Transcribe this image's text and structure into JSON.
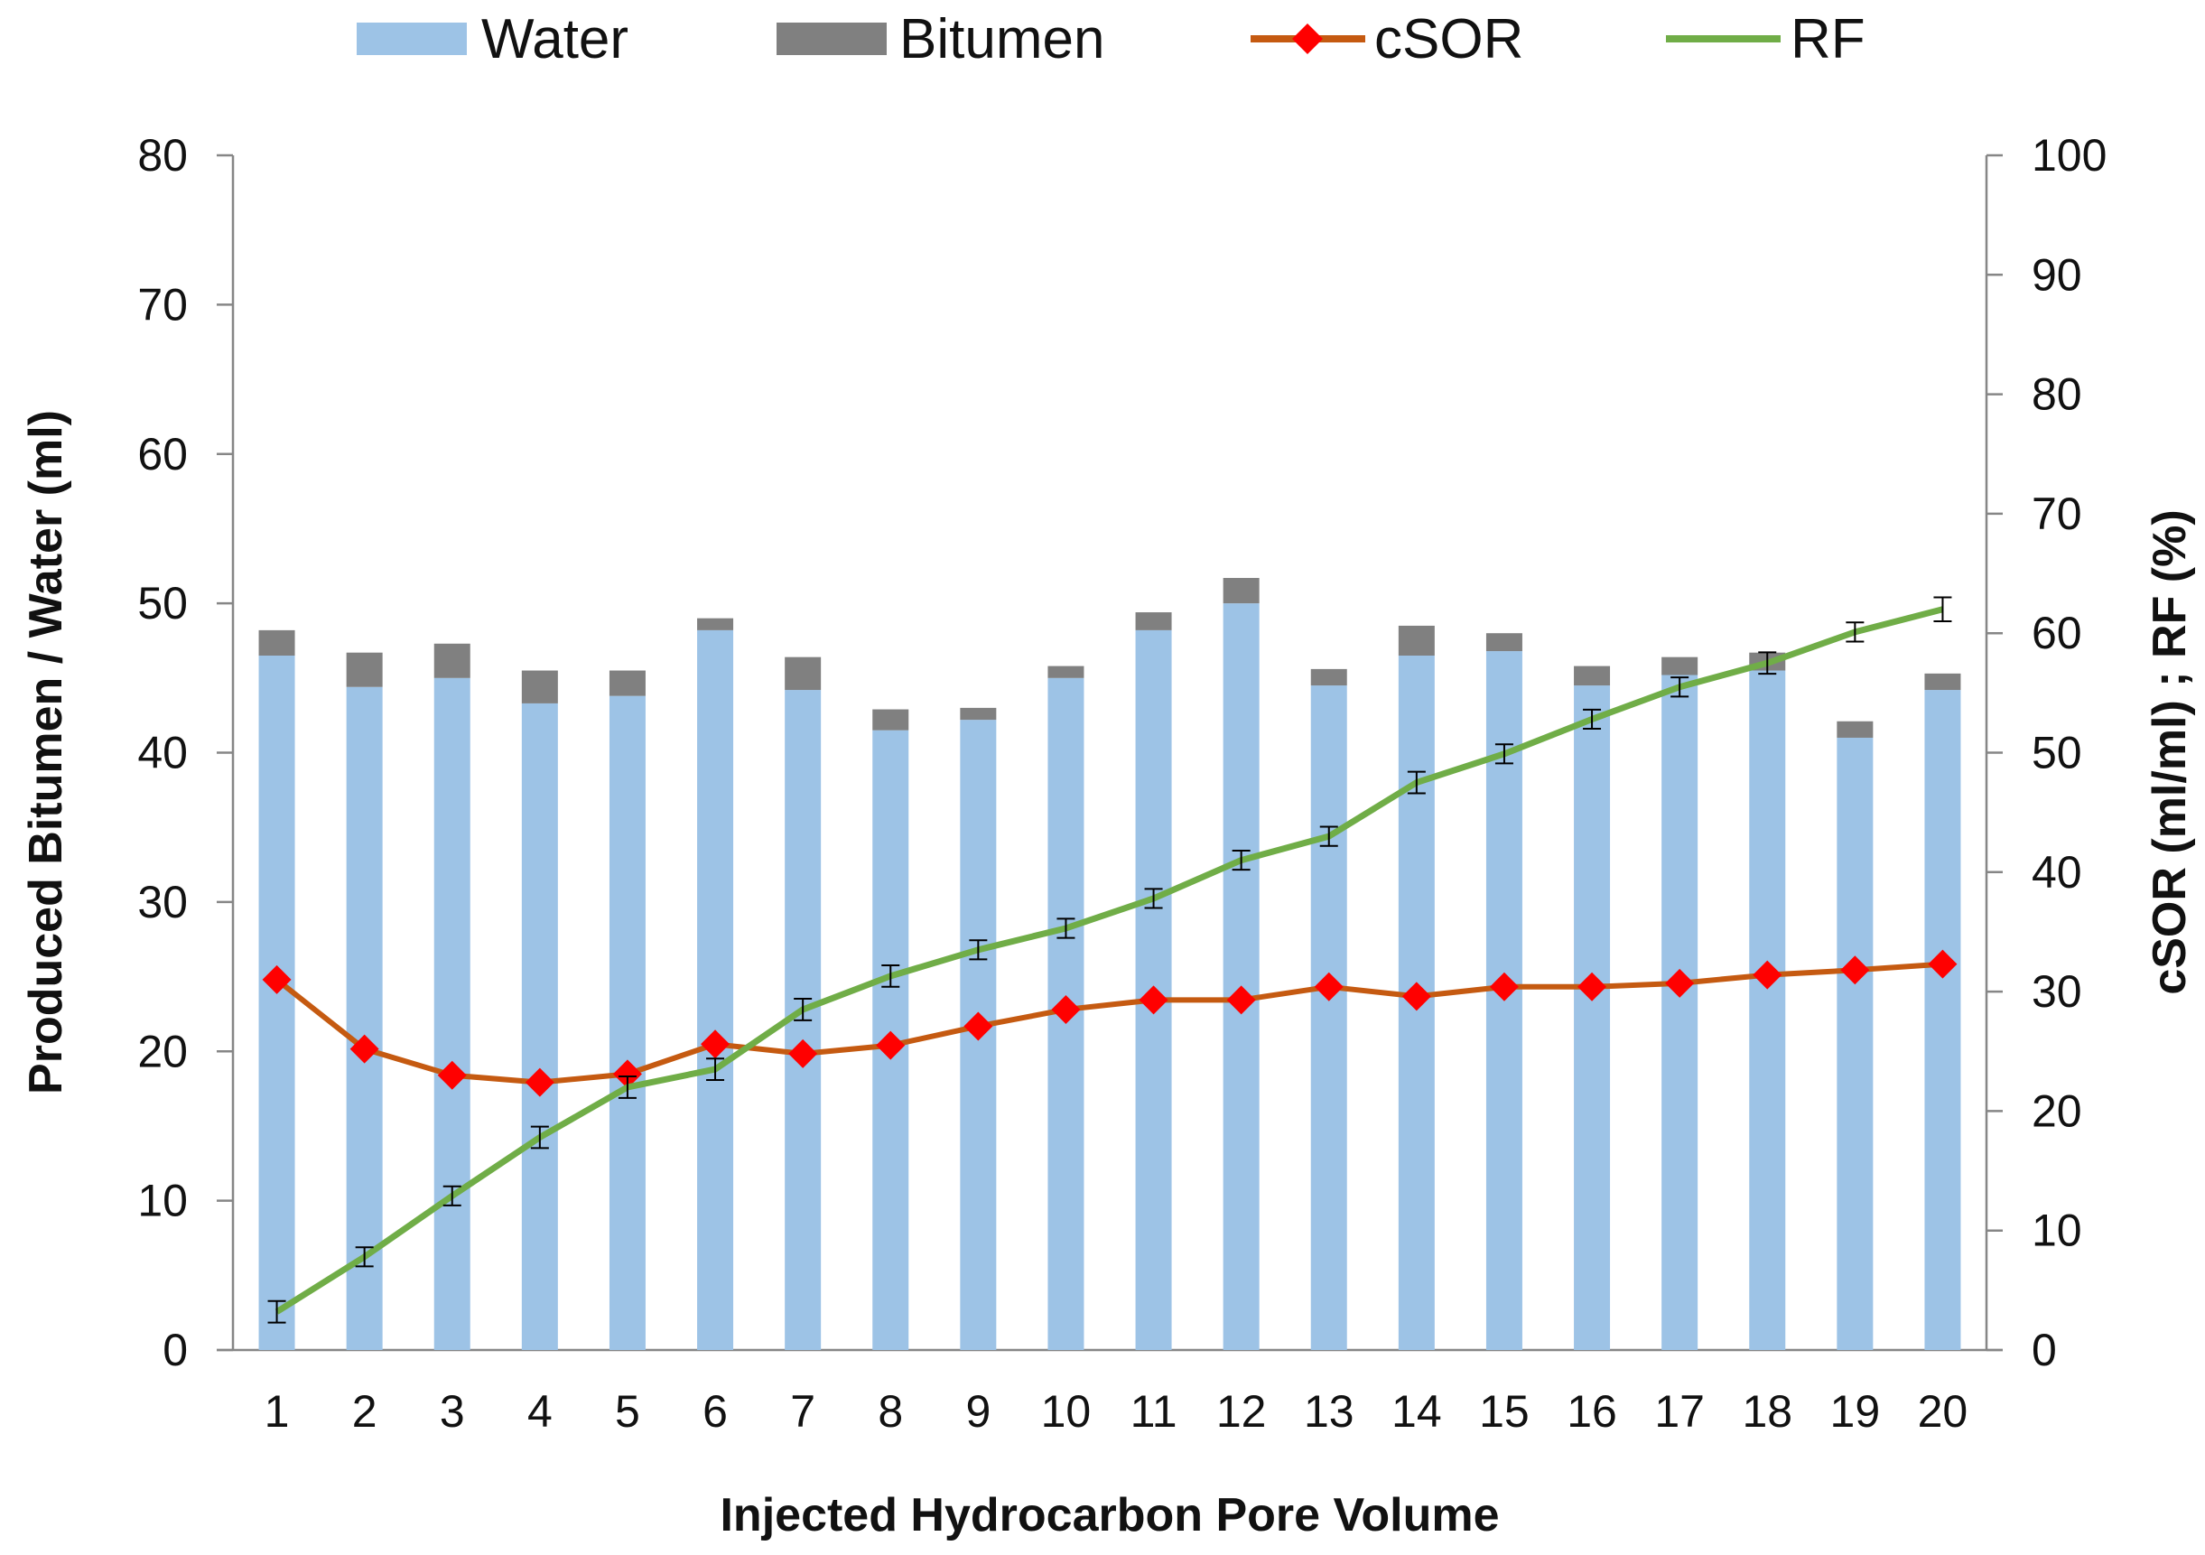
{
  "chart_data": {
    "type": "bar+line",
    "categories": [
      "1",
      "2",
      "3",
      "4",
      "5",
      "6",
      "7",
      "8",
      "9",
      "10",
      "11",
      "12",
      "13",
      "14",
      "15",
      "16",
      "17",
      "18",
      "19",
      "20"
    ],
    "bar_series": [
      {
        "name": "Water",
        "color": "#9dc3e6",
        "values": [
          46.5,
          44.4,
          45.0,
          43.3,
          43.8,
          48.2,
          44.2,
          41.5,
          42.2,
          45.0,
          48.2,
          50.0,
          44.5,
          46.5,
          46.8,
          44.5,
          45.2,
          45.5,
          41.0,
          44.2
        ]
      },
      {
        "name": "Bitumen",
        "color": "#808080",
        "values": [
          1.7,
          2.3,
          2.3,
          2.2,
          1.7,
          0.8,
          2.2,
          1.4,
          0.8,
          0.8,
          1.2,
          1.7,
          1.1,
          2.0,
          1.2,
          1.3,
          1.2,
          1.2,
          1.1,
          1.1
        ]
      }
    ],
    "line_series": [
      {
        "name": "cSOR",
        "color": "#c55a11",
        "marker_color": "#ff0000",
        "marker": "diamond",
        "axis": "right",
        "values": [
          31.0,
          25.2,
          23.0,
          22.4,
          23.1,
          25.6,
          24.8,
          25.5,
          27.1,
          28.5,
          29.3,
          29.3,
          30.4,
          29.6,
          30.4,
          30.4,
          30.7,
          31.4,
          31.8,
          32.3
        ]
      },
      {
        "name": "RF",
        "color": "#70ad47",
        "axis": "right",
        "error_bars": true,
        "values": [
          3.2,
          7.8,
          12.9,
          17.8,
          22.0,
          23.5,
          28.5,
          31.3,
          33.5,
          35.3,
          37.8,
          41.0,
          43.0,
          47.5,
          49.9,
          52.8,
          55.5,
          57.5,
          60.1,
          62.0
        ],
        "errors": [
          0.9,
          0.8,
          0.8,
          0.9,
          0.9,
          0.9,
          0.9,
          0.9,
          0.8,
          0.8,
          0.8,
          0.8,
          0.8,
          0.9,
          0.8,
          0.8,
          0.8,
          0.9,
          0.8,
          1.0
        ]
      }
    ],
    "xlabel": "Injected Hydrocarbon Pore Volume",
    "ylabel": "Produced Bitumen / Water  (ml)",
    "y2label": "cSOR  (ml/ml) ;  RF  (%)",
    "ylim": [
      0,
      80
    ],
    "yticks": [
      "0",
      "10",
      "20",
      "30",
      "40",
      "50",
      "60",
      "70",
      "80"
    ],
    "y2lim": [
      0,
      100
    ],
    "y2ticks": [
      "0",
      "10",
      "20",
      "30",
      "40",
      "50",
      "60",
      "70",
      "80",
      "90",
      "100"
    ],
    "legend": {
      "position": "top",
      "entries": [
        "Water",
        "Bitumen",
        "cSOR",
        "RF"
      ]
    },
    "grid": false
  }
}
